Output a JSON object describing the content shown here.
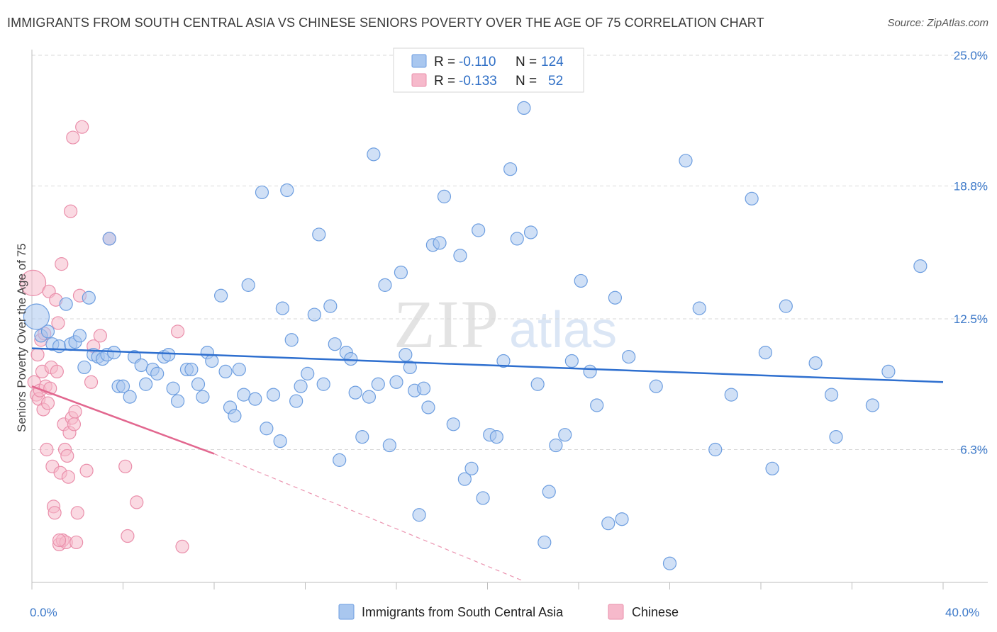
{
  "title": "IMMIGRANTS FROM SOUTH CENTRAL ASIA VS CHINESE SENIORS POVERTY OVER THE AGE OF 75 CORRELATION CHART",
  "source": "Source: ZipAtlas.com",
  "watermark": {
    "zip": "ZIP",
    "atlas": "atlas"
  },
  "legend_box": {
    "rows": [
      {
        "r_label": "R = ",
        "r_value": "-0.110",
        "n_label": "N = ",
        "n_value": "124"
      },
      {
        "r_label": "R = ",
        "r_value": "-0.133",
        "n_label": "N = ",
        "n_value": "52"
      }
    ]
  },
  "colors": {
    "blue_fill": "#a9c7ef",
    "blue_stroke": "#6d9ee0",
    "blue_line": "#2e6fcf",
    "pink_fill": "#f6b9cb",
    "pink_stroke": "#ea8fab",
    "pink_line": "#e2678f",
    "tick_color": "#3b78c9",
    "grid": "#d9d9d9"
  },
  "chart_data": {
    "type": "scatter",
    "title": "IMMIGRANTS FROM SOUTH CENTRAL ASIA VS CHINESE SENIORS POVERTY OVER THE AGE OF 75 CORRELATION CHART",
    "xlabel": "",
    "ylabel": "Seniors Poverty Over the Age of 75",
    "xlim": [
      0,
      40
    ],
    "ylim": [
      0,
      25.0
    ],
    "x_tick_labels": [
      "0.0%",
      "40.0%"
    ],
    "y_ticks": [
      6.3,
      12.5,
      18.8,
      25.0
    ],
    "y_tick_labels": [
      "6.3%",
      "12.5%",
      "18.8%",
      "25.0%"
    ],
    "legend_position": "bottom",
    "series": [
      {
        "name": "Immigrants from South Central Asia",
        "R": -0.11,
        "N": 124,
        "trend": {
          "x": [
            0,
            40
          ],
          "y": [
            11.1,
            9.5
          ]
        },
        "points": [
          [
            0.2,
            12.6
          ],
          [
            0.4,
            11.7
          ],
          [
            0.7,
            11.9
          ],
          [
            0.9,
            11.3
          ],
          [
            1.2,
            11.2
          ],
          [
            1.5,
            13.2
          ],
          [
            1.7,
            11.3
          ],
          [
            1.9,
            11.4
          ],
          [
            2.1,
            11.7
          ],
          [
            2.3,
            10.2
          ],
          [
            2.5,
            13.5
          ],
          [
            2.7,
            10.8
          ],
          [
            2.9,
            10.7
          ],
          [
            3.1,
            10.6
          ],
          [
            3.3,
            10.8
          ],
          [
            3.4,
            16.3
          ],
          [
            3.6,
            10.9
          ],
          [
            3.8,
            9.3
          ],
          [
            4.0,
            9.3
          ],
          [
            4.3,
            8.8
          ],
          [
            4.5,
            10.7
          ],
          [
            4.8,
            10.3
          ],
          [
            5.0,
            9.4
          ],
          [
            5.3,
            10.1
          ],
          [
            5.5,
            9.9
          ],
          [
            5.8,
            10.7
          ],
          [
            6.0,
            10.8
          ],
          [
            6.2,
            9.2
          ],
          [
            6.4,
            8.6
          ],
          [
            6.8,
            10.1
          ],
          [
            7.0,
            10.1
          ],
          [
            7.3,
            9.4
          ],
          [
            7.5,
            8.8
          ],
          [
            7.7,
            10.9
          ],
          [
            7.9,
            10.5
          ],
          [
            8.3,
            13.6
          ],
          [
            8.5,
            10.0
          ],
          [
            8.7,
            8.3
          ],
          [
            8.9,
            7.9
          ],
          [
            9.1,
            10.1
          ],
          [
            9.3,
            8.9
          ],
          [
            9.5,
            14.1
          ],
          [
            9.8,
            8.7
          ],
          [
            10.1,
            18.5
          ],
          [
            10.3,
            7.3
          ],
          [
            10.6,
            8.9
          ],
          [
            10.9,
            6.7
          ],
          [
            11.0,
            13.0
          ],
          [
            11.2,
            18.6
          ],
          [
            11.4,
            11.5
          ],
          [
            11.6,
            8.6
          ],
          [
            11.8,
            9.3
          ],
          [
            12.1,
            9.9
          ],
          [
            12.4,
            12.7
          ],
          [
            12.6,
            16.5
          ],
          [
            12.8,
            9.4
          ],
          [
            13.1,
            13.1
          ],
          [
            13.3,
            11.3
          ],
          [
            13.5,
            5.8
          ],
          [
            13.8,
            10.9
          ],
          [
            14.0,
            10.6
          ],
          [
            14.2,
            9.0
          ],
          [
            14.5,
            6.9
          ],
          [
            14.8,
            8.8
          ],
          [
            15.0,
            20.3
          ],
          [
            15.2,
            9.4
          ],
          [
            15.5,
            14.1
          ],
          [
            15.7,
            6.5
          ],
          [
            16.0,
            9.5
          ],
          [
            16.2,
            14.7
          ],
          [
            16.4,
            10.8
          ],
          [
            16.6,
            10.2
          ],
          [
            16.8,
            9.1
          ],
          [
            17.0,
            3.2
          ],
          [
            17.2,
            9.2
          ],
          [
            17.4,
            8.3
          ],
          [
            17.6,
            16.0
          ],
          [
            17.9,
            16.1
          ],
          [
            18.1,
            18.3
          ],
          [
            18.5,
            7.5
          ],
          [
            18.8,
            15.5
          ],
          [
            19.0,
            4.9
          ],
          [
            19.3,
            5.4
          ],
          [
            19.6,
            16.7
          ],
          [
            19.8,
            4.0
          ],
          [
            20.1,
            7.0
          ],
          [
            20.4,
            6.9
          ],
          [
            20.7,
            10.5
          ],
          [
            21.0,
            19.6
          ],
          [
            21.3,
            16.3
          ],
          [
            21.6,
            22.5
          ],
          [
            21.9,
            16.6
          ],
          [
            22.2,
            9.4
          ],
          [
            22.5,
            1.9
          ],
          [
            22.7,
            4.3
          ],
          [
            23.0,
            6.5
          ],
          [
            23.4,
            7.0
          ],
          [
            23.7,
            10.5
          ],
          [
            24.1,
            14.3
          ],
          [
            24.5,
            10.0
          ],
          [
            24.8,
            8.4
          ],
          [
            25.3,
            2.8
          ],
          [
            25.6,
            13.5
          ],
          [
            25.9,
            3.0
          ],
          [
            26.2,
            10.7
          ],
          [
            27.4,
            9.3
          ],
          [
            28.0,
            0.9
          ],
          [
            28.7,
            20.0
          ],
          [
            29.3,
            13.0
          ],
          [
            30.0,
            6.3
          ],
          [
            30.7,
            8.9
          ],
          [
            31.6,
            18.2
          ],
          [
            32.2,
            10.9
          ],
          [
            32.5,
            5.4
          ],
          [
            33.1,
            13.1
          ],
          [
            34.4,
            10.4
          ],
          [
            35.1,
            8.9
          ],
          [
            35.3,
            6.9
          ],
          [
            36.9,
            8.4
          ],
          [
            37.6,
            10.0
          ],
          [
            39.0,
            15.0
          ]
        ]
      },
      {
        "name": "Chinese",
        "R": -0.133,
        "N": 52,
        "trend": {
          "x": [
            0,
            8
          ],
          "y": [
            9.3,
            6.1
          ]
        },
        "trend_dashed": {
          "x": [
            8,
            21.5
          ],
          "y": [
            6.1,
            0.1
          ]
        },
        "points": [
          [
            0.05,
            14.2
          ],
          [
            0.1,
            9.5
          ],
          [
            0.2,
            8.9
          ],
          [
            0.25,
            10.8
          ],
          [
            0.3,
            8.7
          ],
          [
            0.35,
            9.1
          ],
          [
            0.4,
            11.5
          ],
          [
            0.45,
            10.0
          ],
          [
            0.5,
            8.2
          ],
          [
            0.55,
            11.8
          ],
          [
            0.6,
            9.3
          ],
          [
            0.65,
            6.3
          ],
          [
            0.7,
            8.5
          ],
          [
            0.75,
            13.8
          ],
          [
            0.8,
            9.2
          ],
          [
            0.85,
            10.2
          ],
          [
            0.9,
            5.5
          ],
          [
            0.95,
            3.6
          ],
          [
            1.0,
            3.3
          ],
          [
            1.05,
            13.4
          ],
          [
            1.1,
            10.0
          ],
          [
            1.15,
            12.3
          ],
          [
            1.2,
            1.8
          ],
          [
            1.25,
            5.2
          ],
          [
            1.3,
            15.1
          ],
          [
            1.35,
            2.0
          ],
          [
            1.4,
            7.5
          ],
          [
            1.45,
            6.3
          ],
          [
            1.5,
            1.9
          ],
          [
            1.55,
            6.0
          ],
          [
            1.6,
            5.0
          ],
          [
            1.65,
            7.1
          ],
          [
            1.7,
            17.6
          ],
          [
            1.75,
            7.8
          ],
          [
            1.8,
            21.1
          ],
          [
            1.85,
            7.5
          ],
          [
            1.9,
            8.1
          ],
          [
            1.95,
            1.9
          ],
          [
            2.0,
            3.3
          ],
          [
            2.1,
            13.6
          ],
          [
            2.2,
            21.6
          ],
          [
            2.4,
            5.3
          ],
          [
            2.6,
            9.5
          ],
          [
            2.7,
            11.2
          ],
          [
            3.4,
            16.3
          ],
          [
            4.1,
            5.5
          ],
          [
            4.2,
            2.2
          ],
          [
            4.6,
            3.8
          ],
          [
            6.4,
            11.9
          ],
          [
            6.6,
            1.7
          ],
          [
            3.0,
            11.7
          ],
          [
            1.2,
            2.0
          ]
        ]
      }
    ]
  }
}
